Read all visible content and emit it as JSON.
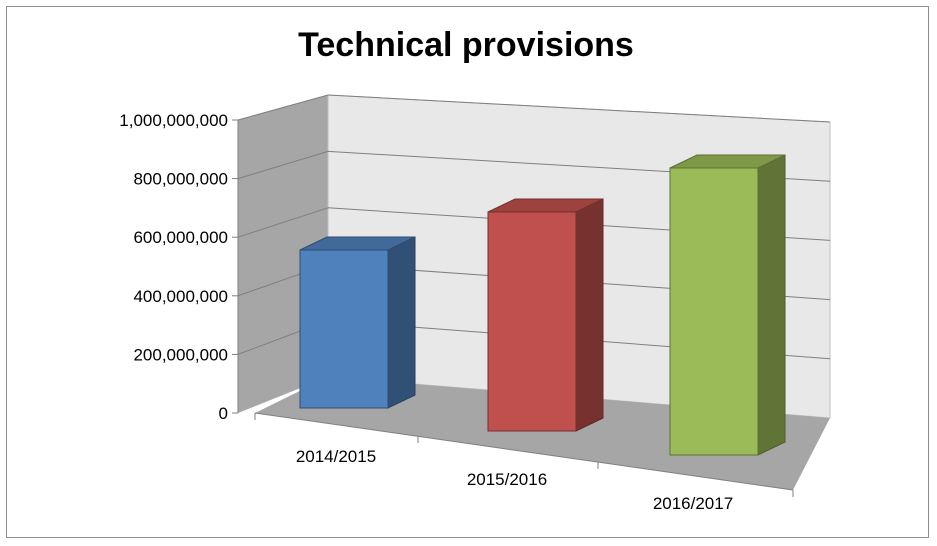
{
  "chart_data": {
    "type": "bar",
    "title": "Technical provisions",
    "categories": [
      "2014/2015",
      "2015/2016",
      "2016/2017"
    ],
    "values": [
      555000000,
      680000000,
      830000000
    ],
    "ylim": [
      0,
      1000000000
    ],
    "yticks": [
      "0",
      "200,000,000",
      "400,000,000",
      "600,000,000",
      "800,000,000",
      "1,000,000,000"
    ],
    "xlabel": "",
    "ylabel": "",
    "grid": true,
    "legend": "none",
    "colors": [
      "#4f81bd",
      "#c0504d",
      "#9bbb59"
    ],
    "style": "3d-column"
  }
}
